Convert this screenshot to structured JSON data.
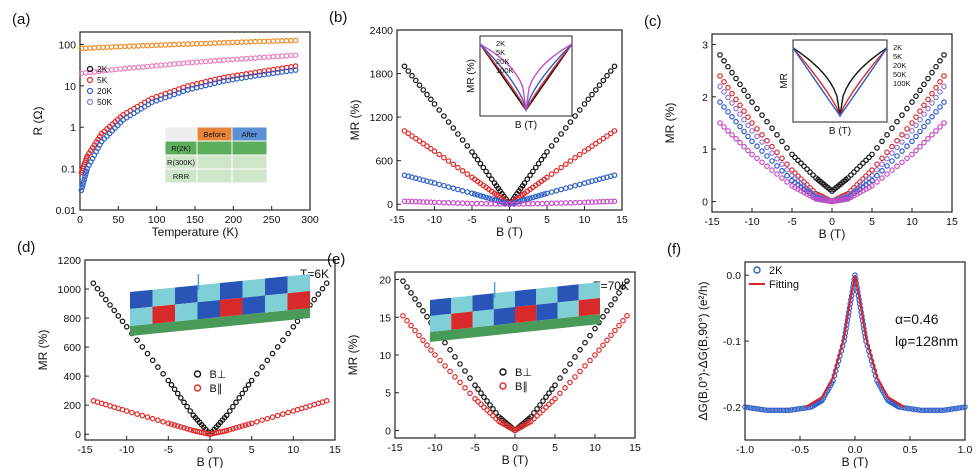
{
  "colors": {
    "black": "#111111",
    "red": "#e02a2a",
    "blue": "#2f5fc8",
    "magenta": "#c84cc8",
    "violet": "#8a7ad8",
    "orange": "#f08a24",
    "pink": "#e87cc0",
    "fit": "#e0202a"
  },
  "chart_data": [
    {
      "id": "a",
      "type": "scatter",
      "panel_label": "(a)",
      "xlabel": "Temperature (K)",
      "ylabel": "R (Ω)",
      "xlim": [
        0,
        320
      ],
      "ylim": [
        0.01,
        200
      ],
      "yscale": "log",
      "xticks": [
        "0",
        "50",
        "100",
        "150",
        "200",
        "250",
        "300"
      ],
      "yticks": [
        "0.01",
        "0.1",
        "1",
        "10",
        "100"
      ],
      "series": [
        {
          "color": "orange",
          "x": [
            2,
            50,
            100,
            150,
            200,
            250,
            300
          ],
          "y": [
            80,
            88,
            95,
            102,
            110,
            118,
            125
          ]
        },
        {
          "color": "pink",
          "x": [
            2,
            50,
            100,
            150,
            200,
            250,
            300
          ],
          "y": [
            20,
            25,
            30,
            36,
            42,
            48,
            55
          ]
        },
        {
          "color": "red",
          "x": [
            2,
            10,
            30,
            60,
            100,
            150,
            200,
            250,
            300
          ],
          "y": [
            0.08,
            0.2,
            0.7,
            2,
            5,
            10,
            16,
            22,
            30
          ]
        },
        {
          "color": "blue",
          "x": [
            2,
            10,
            30,
            60,
            100,
            150,
            200,
            250,
            300
          ],
          "y": [
            0.03,
            0.1,
            0.45,
            1.5,
            4,
            8,
            13,
            18,
            24
          ]
        }
      ]
    },
    {
      "id": "b",
      "type": "scatter",
      "panel_label": "(b)",
      "xlabel": "B (T)",
      "ylabel": "MR (%)",
      "xlim": [
        -15,
        15
      ],
      "ylim": [
        -80,
        2400
      ],
      "xticks": [
        "-15",
        "-10",
        "-5",
        "0",
        "5",
        "10",
        "15"
      ],
      "yticks": [
        "0",
        "600",
        "1200",
        "1800",
        "2400"
      ],
      "series": [
        {
          "color": "black",
          "x": [
            -14,
            -10,
            -5,
            -2,
            0,
            2,
            5,
            10,
            14
          ],
          "y": [
            1900,
            1380,
            720,
            290,
            0,
            290,
            720,
            1380,
            1900
          ]
        },
        {
          "color": "red",
          "x": [
            -14,
            -10,
            -5,
            -2,
            0,
            2,
            5,
            10,
            14
          ],
          "y": [
            1010,
            730,
            370,
            150,
            0,
            150,
            370,
            730,
            1010
          ]
        },
        {
          "color": "blue",
          "x": [
            -14,
            -10,
            -5,
            -2,
            0,
            2,
            5,
            10,
            14
          ],
          "y": [
            400,
            290,
            150,
            60,
            0,
            60,
            150,
            290,
            400
          ]
        },
        {
          "color": "magenta",
          "x": [
            -14,
            -10,
            -5,
            0,
            5,
            10,
            14
          ],
          "y": [
            40,
            25,
            10,
            0,
            10,
            25,
            40
          ]
        }
      ]
    },
    {
      "id": "c",
      "type": "scatter",
      "panel_label": "(c)",
      "xlabel": "B (T)",
      "ylabel": "MR (%)",
      "xlim": [
        -15,
        15
      ],
      "ylim": [
        -0.2,
        3.2
      ],
      "xticks": [
        "-15",
        "-10",
        "-5",
        "0",
        "5",
        "10",
        "15"
      ],
      "yticks": [
        "0",
        "1",
        "2",
        "3"
      ],
      "series": [
        {
          "color": "black",
          "x": [
            -14,
            -10,
            -5,
            -2,
            0,
            2,
            5,
            10,
            14
          ],
          "y": [
            2.8,
            1.9,
            0.9,
            0.45,
            0.2,
            0.45,
            0.9,
            1.9,
            2.8
          ]
        },
        {
          "color": "red",
          "x": [
            -14,
            -10,
            -5,
            -2,
            0,
            2,
            5,
            10,
            14
          ],
          "y": [
            2.4,
            1.5,
            0.6,
            0.15,
            0,
            0.15,
            0.6,
            1.5,
            2.4
          ]
        },
        {
          "color": "violet",
          "x": [
            -14,
            -10,
            -5,
            -2,
            0,
            2,
            5,
            10,
            14
          ],
          "y": [
            2.2,
            1.35,
            0.5,
            0.1,
            0,
            0.1,
            0.5,
            1.35,
            2.2
          ]
        },
        {
          "color": "blue",
          "x": [
            -14,
            -10,
            -5,
            -2,
            0,
            2,
            5,
            10,
            14
          ],
          "y": [
            1.9,
            1.15,
            0.4,
            0.07,
            0,
            0.07,
            0.4,
            1.15,
            1.9
          ]
        },
        {
          "color": "magenta",
          "x": [
            -14,
            -10,
            -5,
            -2,
            0,
            2,
            5,
            10,
            14
          ],
          "y": [
            1.5,
            0.9,
            0.3,
            0.05,
            0,
            0.05,
            0.3,
            0.9,
            1.5
          ]
        }
      ]
    },
    {
      "id": "d",
      "type": "scatter",
      "panel_label": "(d)",
      "annotation": "T=6K",
      "xlabel": "B (T)",
      "ylabel": "MR (%)",
      "xlim": [
        -15,
        15
      ],
      "ylim": [
        -40,
        1200
      ],
      "xticks": [
        "-15",
        "-10",
        "-5",
        "0",
        "5",
        "10",
        "15"
      ],
      "yticks": [
        "0",
        "200",
        "400",
        "600",
        "800",
        "1000",
        "1200"
      ],
      "legend": [
        "B⊥",
        "B∥"
      ],
      "series": [
        {
          "color": "black",
          "x": [
            -14,
            -10,
            -5,
            -2,
            0,
            2,
            5,
            10,
            14
          ],
          "y": [
            1040,
            740,
            370,
            130,
            0,
            130,
            370,
            740,
            1040
          ]
        },
        {
          "color": "red",
          "x": [
            -14,
            -10,
            -5,
            -2,
            0,
            2,
            5,
            10,
            14
          ],
          "y": [
            230,
            160,
            75,
            25,
            0,
            25,
            75,
            160,
            230
          ]
        }
      ]
    },
    {
      "id": "e",
      "type": "scatter",
      "panel_label": "(e)",
      "annotation": "T=70K",
      "xlabel": "B (T)",
      "ylabel": "MR (%)",
      "xlim": [
        -15,
        15
      ],
      "ylim": [
        -1,
        21
      ],
      "xticks": [
        "-15",
        "-10",
        "-5",
        "0",
        "5",
        "10",
        "15"
      ],
      "yticks": [
        "0",
        "5",
        "10",
        "15",
        "20"
      ],
      "legend": [
        "B⊥",
        "B∥"
      ],
      "series": [
        {
          "color": "black",
          "x": [
            -14,
            -10,
            -5,
            -2,
            0,
            2,
            5,
            10,
            14
          ],
          "y": [
            19.8,
            13.5,
            6,
            1.8,
            0,
            1.8,
            6,
            13.5,
            19.8
          ]
        },
        {
          "color": "red",
          "x": [
            -14,
            -10,
            -5,
            -2,
            0,
            2,
            5,
            10,
            14
          ],
          "y": [
            15.2,
            10,
            4.2,
            1.2,
            0,
            1.2,
            4.2,
            10,
            15.2
          ]
        }
      ]
    },
    {
      "id": "f",
      "type": "scatter",
      "panel_label": "(f)",
      "xlabel": "B (T)",
      "ylabel": "ΔG(B,0°)-ΔG(B,90°) (e²/h)",
      "xlim": [
        -1.0,
        1.0
      ],
      "ylim": [
        -0.25,
        0.02
      ],
      "xticks": [
        "-1.0",
        "-0.5",
        "0.0",
        "0.5",
        "1.0"
      ],
      "yticks": [
        "0.0",
        "-0.1",
        "-0.2"
      ],
      "legend": [
        "2K",
        "Fitting"
      ],
      "annotation_lines": [
        "α=0.46",
        "lφ=128nm"
      ],
      "series": [
        {
          "name": "2K",
          "color": "blue",
          "x": [
            -1,
            -0.8,
            -0.6,
            -0.4,
            -0.3,
            -0.2,
            -0.1,
            -0.05,
            0,
            0.05,
            0.1,
            0.2,
            0.3,
            0.4,
            0.6,
            0.8,
            1
          ],
          "y": [
            -0.2,
            -0.205,
            -0.205,
            -0.2,
            -0.19,
            -0.16,
            -0.1,
            -0.05,
            0,
            -0.05,
            -0.1,
            -0.16,
            -0.19,
            -0.2,
            -0.205,
            -0.205,
            -0.2
          ]
        },
        {
          "name": "Fitting",
          "color": "fit",
          "x": [
            -0.45,
            -0.3,
            -0.2,
            -0.1,
            -0.05,
            0,
            0.05,
            0.1,
            0.2,
            0.3,
            0.45
          ],
          "y": [
            -0.2,
            -0.185,
            -0.155,
            -0.095,
            -0.045,
            0,
            -0.045,
            -0.095,
            -0.155,
            -0.185,
            -0.2
          ]
        }
      ]
    }
  ],
  "inset_b": {
    "xlabel": "B (T)",
    "ylabel": "MR (%)",
    "legend": [
      "2K",
      "5K",
      "20K",
      "100K"
    ]
  },
  "inset_c": {
    "xlabel": "B (T)",
    "ylabel": "MR",
    "legend": [
      "2K",
      "5K",
      "20K",
      "50K",
      "100K"
    ]
  },
  "legend_a": [
    "2K",
    "5K",
    "20K",
    "50K"
  ],
  "table_a": {
    "cols": [
      "",
      "Before",
      "After"
    ],
    "rows": [
      [
        "R(2K)",
        "",
        ""
      ],
      [
        "R(300K)",
        "",
        ""
      ],
      [
        "RRR",
        "",
        ""
      ]
    ]
  }
}
